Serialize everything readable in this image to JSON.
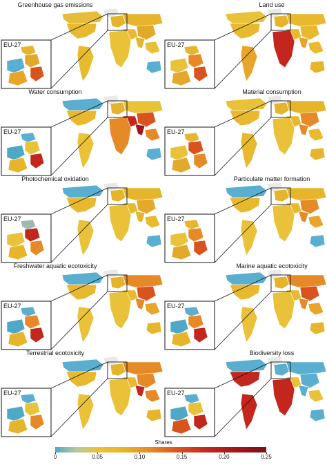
{
  "legend": {
    "title": "Shares",
    "ticks": [
      "0",
      "0.05",
      "0.10",
      "0.15",
      "0.20",
      "0.25"
    ],
    "scale_min": 0,
    "scale_max": 0.25,
    "colors": [
      "#4ea8c8",
      "#e9c23a",
      "#e58a26",
      "#d9531e",
      "#c2261d",
      "#7a0f14"
    ]
  },
  "inset_label": "EU-27",
  "panels": [
    {
      "title": "Greenhouse gas emissions",
      "base": "#e7b52c",
      "regions": {
        "na": "#e8b92f",
        "can": "#e6bd3a",
        "sa": "#e8bb2e",
        "eu": "#e6b42a",
        "rus": "#e7b52c",
        "africa": "#e9c23a",
        "me": "#e9b930",
        "china": "#e2a92a",
        "india": "#e7b52c",
        "sea": "#eabf35",
        "aus": "#5aaed0",
        "greenland": "#e9e9e9"
      },
      "inset": [
        "#e7b52c",
        "#e2a92a",
        "#5aaed0",
        "#d9531e",
        "#e8a52a"
      ]
    },
    {
      "title": "Land use",
      "base": "#e9b930",
      "regions": {
        "na": "#e8b92f",
        "can": "#e9c23a",
        "sa": "#e7a52a",
        "eu": "#e6b42a",
        "rus": "#e8b92f",
        "africa": "#c2261d",
        "me": "#e9b930",
        "china": "#e8b92f",
        "india": "#e8a52a",
        "sea": "#e9b930",
        "aus": "#e7b52c",
        "greenland": "#e9e9e9"
      },
      "inset": [
        "#e7b52c",
        "#e58a26",
        "#e9c23a",
        "#d9531e",
        "#e2a92a"
      ]
    },
    {
      "title": "Water consumption",
      "base": "#e9b930",
      "regions": {
        "na": "#e8b92f",
        "can": "#5aaed0",
        "sa": "#e9c23a",
        "eu": "#e6b42a",
        "rus": "#e9c23a",
        "africa": "#e58a26",
        "me": "#c2261d",
        "china": "#d9531e",
        "india": "#a1161a",
        "sea": "#e58a26",
        "aus": "#5aaed0",
        "greenland": "#e9e9e9"
      },
      "inset": [
        "#5aaed0",
        "#e9c23a",
        "#4ea8c8",
        "#c2261d",
        "#e7b52c"
      ]
    },
    {
      "title": "Material consumption",
      "base": "#e9b930",
      "regions": {
        "na": "#e8b92f",
        "can": "#e9c23a",
        "sa": "#e8b92f",
        "eu": "#e6b42a",
        "rus": "#e7b52c",
        "africa": "#e9c23a",
        "me": "#e8b92f",
        "china": "#e58a26",
        "india": "#e58a26",
        "sea": "#e9b930",
        "aus": "#e7b52c",
        "greenland": "#e9e9e9"
      },
      "inset": [
        "#e7b52c",
        "#d9531e",
        "#e9c23a",
        "#e58a26",
        "#e2a92a"
      ]
    },
    {
      "title": "Photochemical oxidation",
      "base": "#e9b930",
      "regions": {
        "na": "#e8b92f",
        "can": "#5aaed0",
        "sa": "#e9c23a",
        "eu": "#e6b42a",
        "rus": "#e7b52c",
        "africa": "#e9c23a",
        "me": "#e8b92f",
        "china": "#e2a92a",
        "india": "#e7b52c",
        "sea": "#e9b930",
        "aus": "#5aaed0",
        "greenland": "#e9e9e9"
      },
      "inset": [
        "#9fb8b0",
        "#c2261d",
        "#e9c23a",
        "#e58a26",
        "#e7b52c"
      ]
    },
    {
      "title": "Particulate matter formation",
      "base": "#e9b930",
      "regions": {
        "na": "#e8b92f",
        "can": "#5aaed0",
        "sa": "#e9c23a",
        "eu": "#e6b42a",
        "rus": "#e7b52c",
        "africa": "#e9c23a",
        "me": "#e8b92f",
        "china": "#e58a26",
        "india": "#e58a26",
        "sea": "#e8a52a",
        "aus": "#5aaed0",
        "greenland": "#e9e9e9"
      },
      "inset": [
        "#e7b52c",
        "#e58a26",
        "#e9c23a",
        "#d9531e",
        "#e2a92a"
      ]
    },
    {
      "title": "Freshwater aquatic ecotoxicity",
      "base": "#e9b930",
      "regions": {
        "na": "#e8b92f",
        "can": "#5aaed0",
        "sa": "#e9c23a",
        "eu": "#e6b42a",
        "rus": "#e58a26",
        "africa": "#e9c23a",
        "me": "#e8b92f",
        "china": "#d9531e",
        "india": "#e58a26",
        "sea": "#e8a52a",
        "aus": "#e7b52c",
        "greenland": "#e9e9e9"
      },
      "inset": [
        "#5aaed0",
        "#e58a26",
        "#4ea8c8",
        "#c2261d",
        "#e7b52c"
      ]
    },
    {
      "title": "Marine aquatic ecotoxicity",
      "base": "#e9b930",
      "regions": {
        "na": "#e8b92f",
        "can": "#5aaed0",
        "sa": "#e9c23a",
        "eu": "#e6b42a",
        "rus": "#e58a26",
        "africa": "#e9c23a",
        "me": "#e8b92f",
        "china": "#d9531e",
        "india": "#e58a26",
        "sea": "#e8a52a",
        "aus": "#e7b52c",
        "greenland": "#e9e9e9"
      },
      "inset": [
        "#5aaed0",
        "#e58a26",
        "#4ea8c8",
        "#c2261d",
        "#e7b52c"
      ]
    },
    {
      "title": "Terrestrial ecotoxicity",
      "base": "#e9b930",
      "regions": {
        "na": "#e8b92f",
        "can": "#5aaed0",
        "sa": "#e9c23a",
        "eu": "#e6b42a",
        "rus": "#e58a26",
        "africa": "#e9c23a",
        "me": "#e8b92f",
        "china": "#e58a26",
        "india": "#c2261d",
        "sea": "#e58a26",
        "aus": "#e7b52c",
        "greenland": "#e9e9e9"
      },
      "inset": [
        "#5aaed0",
        "#e9c23a",
        "#4ea8c8",
        "#e58a26",
        "#e7b52c"
      ]
    },
    {
      "title": "Biodiversity loss",
      "base": "#5aaed0",
      "regions": {
        "na": "#c2261d",
        "can": "#5aaed0",
        "sa": "#c2261d",
        "eu": "#5aaed0",
        "rus": "#5aaed0",
        "africa": "#c2261d",
        "me": "#e9c23a",
        "china": "#5aaed0",
        "india": "#5aaed0",
        "sea": "#e9c23a",
        "aus": "#5aaed0",
        "greenland": "#e9e9e9"
      },
      "inset": [
        "#5aaed0",
        "#e9c23a",
        "#4ea8c8",
        "#c2261d",
        "#d9531e"
      ]
    }
  ]
}
